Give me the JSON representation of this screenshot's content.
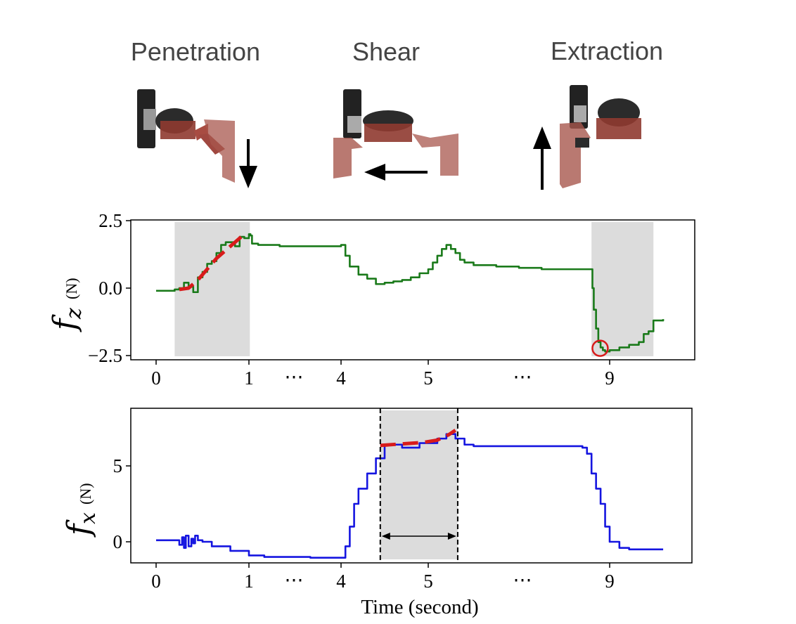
{
  "phases": {
    "penetration": "Penetration",
    "shear": "Shear",
    "extraction": "Extraction"
  },
  "colors": {
    "fz_line": "#1a7a1a",
    "fx_line": "#1515e0",
    "fit": "#d81b1b",
    "shade": "#dcdcdc",
    "gripper": "#9c3c32",
    "gripper_dark": "#2a2a2a"
  },
  "chart_data": [
    {
      "type": "line",
      "title": "",
      "xlabel": "",
      "ylabel_main": "f",
      "ylabel_sub": "z",
      "ylabel_unit": "(N)",
      "xlim": [
        0,
        9.6
      ],
      "ylim": [
        -2.6,
        2.5
      ],
      "yticks": [
        2.5,
        0,
        -2.5
      ],
      "ytick_labels": [
        "2.5",
        "0.0",
        "−2.5"
      ],
      "xticks": [
        0,
        1,
        4,
        5,
        9
      ],
      "xtick_labels": [
        "0",
        "1",
        "4",
        "5",
        "9"
      ],
      "gap_marker": "⋯",
      "gap_positions": [
        1.5,
        7.0
      ],
      "shaded_regions": [
        [
          0.2,
          1.03
        ],
        [
          8.6,
          9.45
        ]
      ],
      "series": [
        {
          "name": "f_z",
          "color": "#1a7a1a",
          "x": [
            0,
            0.15,
            0.2,
            0.25,
            0.3,
            0.35,
            0.4,
            0.45,
            0.5,
            0.55,
            0.6,
            0.65,
            0.7,
            0.75,
            0.8,
            0.85,
            0.9,
            0.95,
            1.0,
            1.05,
            1.1,
            1.3,
            1.6,
            2.0,
            2.5,
            3.0,
            3.5,
            3.9,
            4.0,
            4.05,
            4.1,
            4.2,
            4.3,
            4.4,
            4.5,
            4.6,
            4.7,
            4.8,
            4.9,
            5.0,
            5.1,
            5.2,
            5.3,
            5.4,
            5.5,
            5.6,
            5.7,
            5.8,
            6.0,
            6.5,
            7.0,
            7.5,
            8.0,
            8.5,
            8.6,
            8.62,
            8.65,
            8.7,
            8.75,
            8.8,
            8.85,
            8.9,
            9.0,
            9.1,
            9.2,
            9.3,
            9.35,
            9.4,
            9.45,
            9.55
          ],
          "values": [
            -0.1,
            -0.1,
            -0.05,
            0.0,
            0.2,
            0.05,
            -0.15,
            0.4,
            0.6,
            0.9,
            1.0,
            1.3,
            1.6,
            1.7,
            1.7,
            1.55,
            1.9,
            1.85,
            2.0,
            1.95,
            1.65,
            1.6,
            1.6,
            1.55,
            1.55,
            1.55,
            1.55,
            1.55,
            1.6,
            1.2,
            0.8,
            0.5,
            0.35,
            0.15,
            0.2,
            0.25,
            0.3,
            0.4,
            0.55,
            0.7,
            0.95,
            1.2,
            1.45,
            1.6,
            1.45,
            1.3,
            1.05,
            0.95,
            0.85,
            0.8,
            0.75,
            0.7,
            0.7,
            0.7,
            0.7,
            0.0,
            -0.8,
            -1.5,
            -2.0,
            -2.2,
            -2.3,
            -2.35,
            -2.3,
            -2.2,
            -2.1,
            -2.0,
            -1.7,
            -1.6,
            -1.2,
            -1.15
          ]
        },
        {
          "name": "fit",
          "color": "#d81b1b",
          "dashed": true,
          "x": [
            0.25,
            0.35,
            0.45,
            0.55,
            0.65,
            0.75,
            0.85,
            0.95
          ],
          "values": [
            -0.05,
            0.0,
            0.3,
            0.7,
            1.1,
            1.4,
            1.7,
            2.0
          ]
        }
      ],
      "marker": {
        "x": 8.79,
        "y": -2.23,
        "shape": "circle",
        "color": "#d81b1b"
      }
    },
    {
      "type": "line",
      "title": "",
      "xlabel": "Time (second)",
      "ylabel_main": "f",
      "ylabel_sub": "x",
      "ylabel_unit": "(N)",
      "xlim": [
        0,
        9.6
      ],
      "ylim": [
        -1.4,
        8.7
      ],
      "yticks": [
        5,
        0
      ],
      "ytick_labels": [
        "5",
        "0"
      ],
      "xticks": [
        0,
        1,
        4,
        5,
        9
      ],
      "xtick_labels": [
        "0",
        "1",
        "4",
        "5",
        "9"
      ],
      "gap_marker": "⋯",
      "gap_positions": [
        1.5,
        7.0
      ],
      "shaded_regions": [
        [
          4.45,
          5.65
        ]
      ],
      "vlines": [
        4.45,
        5.65
      ],
      "interval_arrow": [
        4.45,
        5.65
      ],
      "series": [
        {
          "name": "f_x",
          "color": "#1515e0",
          "x": [
            0,
            0.2,
            0.25,
            0.28,
            0.3,
            0.32,
            0.35,
            0.38,
            0.4,
            0.42,
            0.45,
            0.5,
            0.6,
            0.8,
            1.0,
            1.5,
            2.0,
            2.5,
            3.0,
            3.5,
            4.0,
            4.05,
            4.1,
            4.15,
            4.2,
            4.3,
            4.4,
            4.5,
            4.7,
            4.9,
            5.0,
            5.2,
            5.4,
            5.6,
            5.8,
            6.0,
            6.5,
            7.0,
            7.5,
            8.0,
            8.2,
            8.4,
            8.5,
            8.6,
            8.7,
            8.8,
            8.9,
            9.0,
            9.1,
            9.2,
            9.4,
            9.55
          ],
          "values": [
            0.1,
            0.1,
            -0.2,
            0.3,
            -0.4,
            0.4,
            -0.3,
            0.2,
            -0.1,
            0.4,
            0.1,
            0.0,
            -0.3,
            -0.6,
            -0.9,
            -1.0,
            -1.0,
            -1.0,
            -1.05,
            -1.05,
            -1.05,
            -0.3,
            1.0,
            2.5,
            3.5,
            4.5,
            5.5,
            6.4,
            6.2,
            6.5,
            6.5,
            6.8,
            7.1,
            6.8,
            6.4,
            6.3,
            6.3,
            6.3,
            6.3,
            6.3,
            6.3,
            6.2,
            5.8,
            4.5,
            3.5,
            2.5,
            1.0,
            0.0,
            -0.4,
            -0.5,
            -0.5,
            -0.5
          ]
        },
        {
          "name": "fit",
          "color": "#d81b1b",
          "dashed": true,
          "x": [
            4.45,
            4.7,
            4.95,
            5.2,
            5.45,
            5.6
          ],
          "values": [
            6.35,
            6.45,
            6.55,
            6.7,
            7.05,
            7.35
          ]
        }
      ]
    }
  ]
}
